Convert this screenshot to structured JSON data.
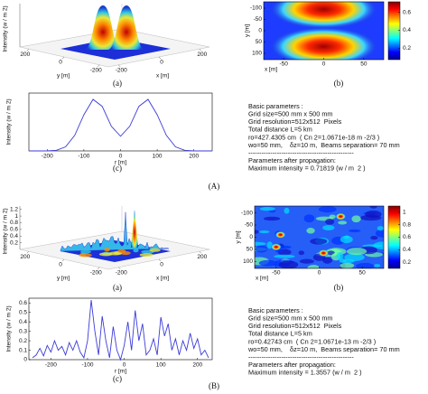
{
  "chart_data": [
    {
      "type": "surface3d",
      "zlabel": "Intensity (w / m 2)",
      "xlabel": "x [m]",
      "ylabel": "y [m]",
      "xlim": [
        -250,
        250
      ],
      "ylim": [
        -250,
        250
      ],
      "xticks": [
        -200,
        0,
        200
      ],
      "yticks": [
        -200,
        0,
        200
      ],
      "caption": "(a)"
    },
    {
      "type": "heatmap",
      "xlabel": "x [m]",
      "ylabel": "y [m]",
      "xlim": [
        -75,
        75
      ],
      "ylim": [
        -128,
        128
      ],
      "y_reversed": true,
      "xticks": [
        -50,
        0,
        50
      ],
      "yticks": [
        -100,
        -50,
        0,
        50,
        100
      ],
      "colorbar_lim": [
        0.07,
        0.72
      ],
      "colorbar_ticks": [
        0.2,
        0.4,
        0.6
      ],
      "caption": "(b)"
    },
    {
      "type": "line",
      "ylabel": "Intensity (w / m 2)",
      "xlabel": "r [m]",
      "color": "#3b3bd9",
      "x": [
        -250,
        -225,
        -200,
        -175,
        -150,
        -125,
        -100,
        -75,
        -50,
        -25,
        0,
        25,
        50,
        75,
        100,
        125,
        150,
        175,
        200,
        225,
        250
      ],
      "values": [
        0,
        0,
        0.001,
        0.009,
        0.056,
        0.215,
        0.5,
        0.713,
        0.616,
        0.34,
        0.203,
        0.34,
        0.616,
        0.713,
        0.5,
        0.215,
        0.056,
        0.009,
        0.001,
        0,
        0
      ],
      "xlim": [
        -250,
        250
      ],
      "ylim": [
        0,
        0.8
      ],
      "xticks": [
        -200,
        -100,
        0,
        100,
        200
      ],
      "caption": "(c)"
    },
    {
      "type": "surface3d",
      "zlabel": "Intensity (w / m 2)",
      "xlabel": "x [m]",
      "ylabel": "y [m]",
      "xlim": [
        -250,
        250
      ],
      "ylim": [
        -250,
        250
      ],
      "zlim": [
        0,
        1.3
      ],
      "xticks": [
        -200,
        0,
        200
      ],
      "yticks": [
        -200,
        0,
        200
      ],
      "zticks": [
        0.2,
        0.4,
        0.6,
        0.8,
        1,
        1.2
      ],
      "caption": "(a)"
    },
    {
      "type": "heatmap",
      "xlabel": "x [m]",
      "ylabel": "y [m]",
      "xlim": [
        -75,
        75
      ],
      "ylim": [
        -128,
        128
      ],
      "y_reversed": true,
      "xticks": [
        -50,
        0,
        50
      ],
      "yticks": [
        -100,
        -50,
        0,
        50,
        100
      ],
      "colorbar_lim": [
        0.1,
        1.1
      ],
      "colorbar_ticks": [
        0.2,
        0.4,
        0.6,
        0.8,
        1
      ],
      "caption": "(b)"
    },
    {
      "type": "line",
      "ylabel": "Intensity (w / m 2)",
      "xlabel": "r [m]",
      "color": "#3b3bd9",
      "x": [
        -250,
        -240,
        -230,
        -220,
        -210,
        -200,
        -190,
        -180,
        -170,
        -160,
        -150,
        -140,
        -130,
        -120,
        -110,
        -100,
        -90,
        -80,
        -70,
        -60,
        -50,
        -40,
        -30,
        -20,
        -10,
        0,
        10,
        20,
        30,
        40,
        50,
        60,
        70,
        80,
        90,
        100,
        110,
        120,
        130,
        140,
        150,
        160,
        170,
        180,
        190,
        200,
        210,
        220,
        230
      ],
      "values": [
        0.02,
        0.05,
        0.12,
        0.04,
        0.15,
        0.08,
        0.2,
        0.1,
        0.14,
        0.05,
        0.18,
        0.1,
        0.2,
        0.08,
        0.02,
        0.2,
        0.63,
        0.3,
        0.05,
        0.46,
        0.2,
        0.02,
        0.35,
        0.1,
        0,
        0.15,
        0.4,
        0.1,
        0.52,
        0.2,
        0.38,
        0.05,
        0.1,
        0.22,
        0.05,
        0.45,
        0.25,
        0.38,
        0.1,
        0.22,
        0.05,
        0.2,
        0.1,
        0.28,
        0.12,
        0.22,
        0.05,
        0.1,
        0.02
      ],
      "xlim": [
        -260,
        240
      ],
      "ylim": [
        0,
        0.65
      ],
      "xticks": [
        -200,
        -100,
        0,
        100,
        200
      ],
      "yticks": [
        0,
        0.1,
        0.2,
        0.3,
        0.4,
        0.5,
        0.6
      ],
      "caption": "(c)"
    }
  ],
  "parameters": [
    [
      "Basic parameters :",
      "Grid size=500 mm x 500 mm",
      "Grid resolution=512x512  Pixels",
      "Total distance L=5 km",
      "ro=427.4305 cm  ( Cn 2=1.0671e-18 m -2/3 )",
      "wo=50 mm,    δz=10 m,  Beams separation= 70 mm",
      "------------------------------------------------",
      "Parameters after propagation:",
      "Maximum intensity = 0.71819 (w / m  2 )"
    ],
    [
      "Basic parameters :",
      "Grid size=500 mm x 500 mm",
      "Grid resolution=512x512  Pixels",
      "Total distance L=5 km",
      "ro=0.42743 cm  ( Cn 2=1.0671e-13 m -2/3 )",
      "wo=50 mm,    δz=10 m,  Beams separation= 70 mm",
      "------------------------------------------------",
      "Parameters after propagation:",
      "Maximum intensity = 1.3557 (w / m  2 )"
    ]
  ],
  "figure_labels": [
    "(A)",
    "(B)"
  ]
}
